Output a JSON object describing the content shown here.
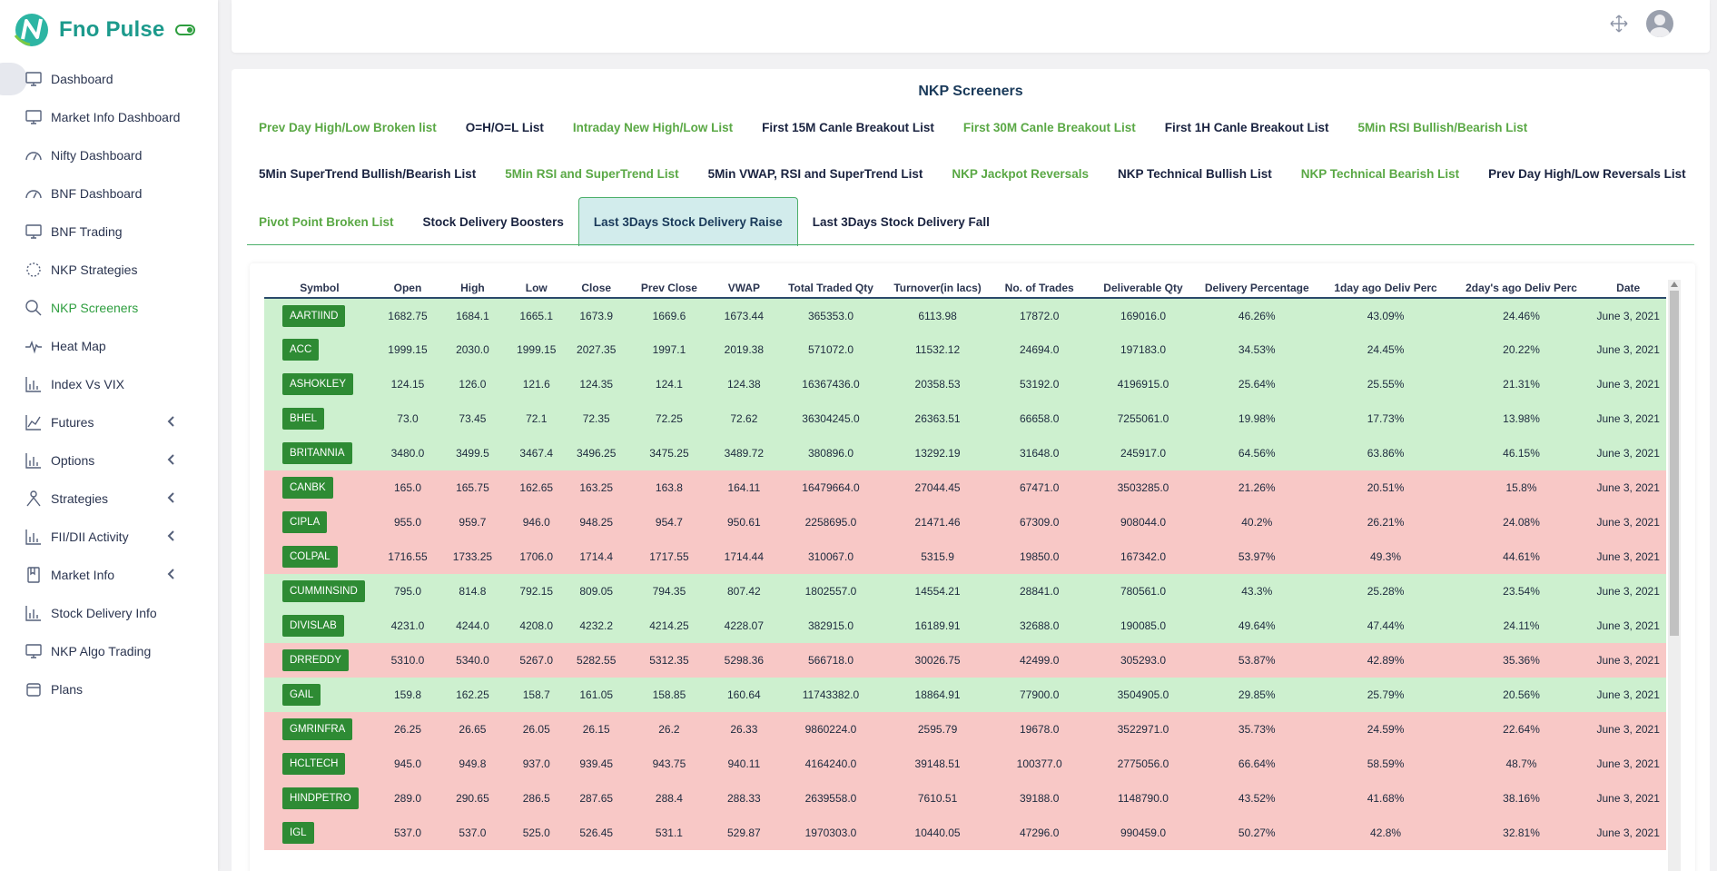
{
  "app": {
    "name": "Fno Pulse"
  },
  "sidebar": {
    "items": [
      {
        "label": "Dashboard",
        "icon": "monitor-icon",
        "has_chevron": false
      },
      {
        "label": "Market Info Dashboard",
        "icon": "monitor-icon",
        "has_chevron": false
      },
      {
        "label": "Nifty Dashboard",
        "icon": "gauge-icon",
        "has_chevron": false
      },
      {
        "label": "BNF Dashboard",
        "icon": "gauge-icon",
        "has_chevron": false
      },
      {
        "label": "BNF Trading",
        "icon": "monitor-icon",
        "has_chevron": false
      },
      {
        "label": "NKP Strategies",
        "icon": "spinner-icon",
        "has_chevron": false
      },
      {
        "label": "NKP Screeners",
        "icon": "search-icon",
        "has_chevron": false
      },
      {
        "label": "Heat Map",
        "icon": "pulse-icon",
        "has_chevron": false
      },
      {
        "label": "Index Vs VIX",
        "icon": "bar-chart-icon",
        "has_chevron": false
      },
      {
        "label": "Futures",
        "icon": "line-chart-icon",
        "has_chevron": true
      },
      {
        "label": "Options",
        "icon": "bar-chart-icon",
        "has_chevron": true
      },
      {
        "label": "Strategies",
        "icon": "person-icon",
        "has_chevron": true
      },
      {
        "label": "FII/DII Activity",
        "icon": "bar-chart-icon",
        "has_chevron": true
      },
      {
        "label": "Market Info",
        "icon": "book-icon",
        "has_chevron": true
      },
      {
        "label": "Stock Delivery Info",
        "icon": "bar-chart-icon",
        "has_chevron": false
      },
      {
        "label": "NKP Algo Trading",
        "icon": "monitor-icon",
        "has_chevron": false
      },
      {
        "label": "Plans",
        "icon": "box-icon",
        "has_chevron": false
      }
    ]
  },
  "page": {
    "title": "NKP Screeners"
  },
  "tabs": {
    "row1": [
      {
        "label": "Prev Day High/Low Broken list",
        "style": "green"
      },
      {
        "label": "O=H/O=L List",
        "style": "dark"
      },
      {
        "label": "Intraday New High/Low List",
        "style": "green"
      },
      {
        "label": "First 15M Canle Breakout List",
        "style": "dark"
      },
      {
        "label": "First 30M Canle Breakout List",
        "style": "green"
      },
      {
        "label": "First 1H Canle Breakout List",
        "style": "dark"
      },
      {
        "label": "5Min RSI Bullish/Bearish List",
        "style": "green"
      }
    ],
    "row2": [
      {
        "label": "5Min SuperTrend Bullish/Bearish List",
        "style": "dark"
      },
      {
        "label": "5Min RSI and SuperTrend List",
        "style": "green"
      },
      {
        "label": "5Min VWAP, RSI and SuperTrend List",
        "style": "dark"
      },
      {
        "label": "NKP Jackpot Reversals",
        "style": "green"
      },
      {
        "label": "NKP Technical Bullish List",
        "style": "dark"
      },
      {
        "label": "NKP Technical Bearish List",
        "style": "green"
      },
      {
        "label": "Prev Day High/Low Reversals List",
        "style": "dark"
      }
    ],
    "row3": [
      {
        "label": "Pivot Point Broken List",
        "style": "green"
      },
      {
        "label": "Stock Delivery Boosters",
        "style": "dark"
      },
      {
        "label": "Last 3Days Stock Delivery Raise",
        "style": "active"
      },
      {
        "label": "Last 3Days Stock Delivery Fall",
        "style": "dark"
      }
    ]
  },
  "table": {
    "columns": [
      "Symbol",
      "Open",
      "High",
      "Low",
      "Close",
      "Prev Close",
      "VWAP",
      "Total Traded Qty",
      "Turnover(in lacs)",
      "No. of Trades",
      "Deliverable Qty",
      "Delivery Percentage",
      "1day ago Deliv Perc",
      "2day's ago Deliv Perc",
      "Date"
    ],
    "rows": [
      {
        "trend": "up",
        "cells": [
          "AARTIIND",
          "1682.75",
          "1684.1",
          "1665.1",
          "1673.9",
          "1669.6",
          "1673.44",
          "365353.0",
          "6113.98",
          "17872.0",
          "169016.0",
          "46.26%",
          "43.09%",
          "24.46%",
          "June 3, 2021"
        ]
      },
      {
        "trend": "up",
        "cells": [
          "ACC",
          "1999.15",
          "2030.0",
          "1999.15",
          "2027.35",
          "1997.1",
          "2019.38",
          "571072.0",
          "11532.12",
          "24694.0",
          "197183.0",
          "34.53%",
          "24.45%",
          "20.22%",
          "June 3, 2021"
        ]
      },
      {
        "trend": "up",
        "cells": [
          "ASHOKLEY",
          "124.15",
          "126.0",
          "121.6",
          "124.35",
          "124.1",
          "124.38",
          "16367436.0",
          "20358.53",
          "53192.0",
          "4196915.0",
          "25.64%",
          "25.55%",
          "21.31%",
          "June 3, 2021"
        ]
      },
      {
        "trend": "up",
        "cells": [
          "BHEL",
          "73.0",
          "73.45",
          "72.1",
          "72.35",
          "72.25",
          "72.62",
          "36304245.0",
          "26363.51",
          "66658.0",
          "7255061.0",
          "19.98%",
          "17.73%",
          "13.98%",
          "June 3, 2021"
        ]
      },
      {
        "trend": "up",
        "cells": [
          "BRITANNIA",
          "3480.0",
          "3499.5",
          "3467.4",
          "3496.25",
          "3475.25",
          "3489.72",
          "380896.0",
          "13292.19",
          "31648.0",
          "245917.0",
          "64.56%",
          "63.86%",
          "46.15%",
          "June 3, 2021"
        ]
      },
      {
        "trend": "down",
        "cells": [
          "CANBK",
          "165.0",
          "165.75",
          "162.65",
          "163.25",
          "163.8",
          "164.11",
          "16479664.0",
          "27044.45",
          "67471.0",
          "3503285.0",
          "21.26%",
          "20.51%",
          "15.8%",
          "June 3, 2021"
        ]
      },
      {
        "trend": "down",
        "cells": [
          "CIPLA",
          "955.0",
          "959.7",
          "946.0",
          "948.25",
          "954.7",
          "950.61",
          "2258695.0",
          "21471.46",
          "67309.0",
          "908044.0",
          "40.2%",
          "26.21%",
          "24.08%",
          "June 3, 2021"
        ]
      },
      {
        "trend": "down",
        "cells": [
          "COLPAL",
          "1716.55",
          "1733.25",
          "1706.0",
          "1714.4",
          "1717.55",
          "1714.44",
          "310067.0",
          "5315.9",
          "19850.0",
          "167342.0",
          "53.97%",
          "49.3%",
          "44.61%",
          "June 3, 2021"
        ]
      },
      {
        "trend": "up",
        "cells": [
          "CUMMINSIND",
          "795.0",
          "814.8",
          "792.15",
          "809.05",
          "794.35",
          "807.42",
          "1802557.0",
          "14554.21",
          "28841.0",
          "780561.0",
          "43.3%",
          "25.28%",
          "23.54%",
          "June 3, 2021"
        ]
      },
      {
        "trend": "up",
        "cells": [
          "DIVISLAB",
          "4231.0",
          "4244.0",
          "4208.0",
          "4232.2",
          "4214.25",
          "4228.07",
          "382915.0",
          "16189.91",
          "32688.0",
          "190085.0",
          "49.64%",
          "47.44%",
          "24.11%",
          "June 3, 2021"
        ]
      },
      {
        "trend": "down",
        "cells": [
          "DRREDDY",
          "5310.0",
          "5340.0",
          "5267.0",
          "5282.55",
          "5312.35",
          "5298.36",
          "566718.0",
          "30026.75",
          "42499.0",
          "305293.0",
          "53.87%",
          "42.89%",
          "35.36%",
          "June 3, 2021"
        ]
      },
      {
        "trend": "up",
        "cells": [
          "GAIL",
          "159.8",
          "162.25",
          "158.7",
          "161.05",
          "158.85",
          "160.64",
          "11743382.0",
          "18864.91",
          "77900.0",
          "3504905.0",
          "29.85%",
          "25.79%",
          "20.56%",
          "June 3, 2021"
        ]
      },
      {
        "trend": "down",
        "cells": [
          "GMRINFRA",
          "26.25",
          "26.65",
          "26.05",
          "26.15",
          "26.2",
          "26.33",
          "9860224.0",
          "2595.79",
          "19678.0",
          "3522971.0",
          "35.73%",
          "24.59%",
          "22.64%",
          "June 3, 2021"
        ]
      },
      {
        "trend": "down",
        "cells": [
          "HCLTECH",
          "945.0",
          "949.8",
          "937.0",
          "939.45",
          "943.75",
          "940.11",
          "4164240.0",
          "39148.51",
          "100377.0",
          "2775056.0",
          "66.64%",
          "58.59%",
          "48.7%",
          "June 3, 2021"
        ]
      },
      {
        "trend": "down",
        "cells": [
          "HINDPETRO",
          "289.0",
          "290.65",
          "286.5",
          "287.65",
          "288.4",
          "288.33",
          "2639558.0",
          "7610.51",
          "39188.0",
          "1148790.0",
          "43.52%",
          "41.68%",
          "38.16%",
          "June 3, 2021"
        ]
      },
      {
        "trend": "down",
        "cells": [
          "IGL",
          "537.0",
          "537.0",
          "525.0",
          "526.45",
          "531.1",
          "529.87",
          "1970303.0",
          "10440.05",
          "47296.0",
          "990459.0",
          "50.27%",
          "42.8%",
          "32.81%",
          "June 3, 2021"
        ]
      }
    ]
  },
  "colors": {
    "accent_green": "#2e9e3f",
    "row_up": "#cdf0cf",
    "row_down": "#f8c8c6",
    "symbol_badge": "#2e8b34",
    "active_tab_bg": "#d2ecec"
  }
}
